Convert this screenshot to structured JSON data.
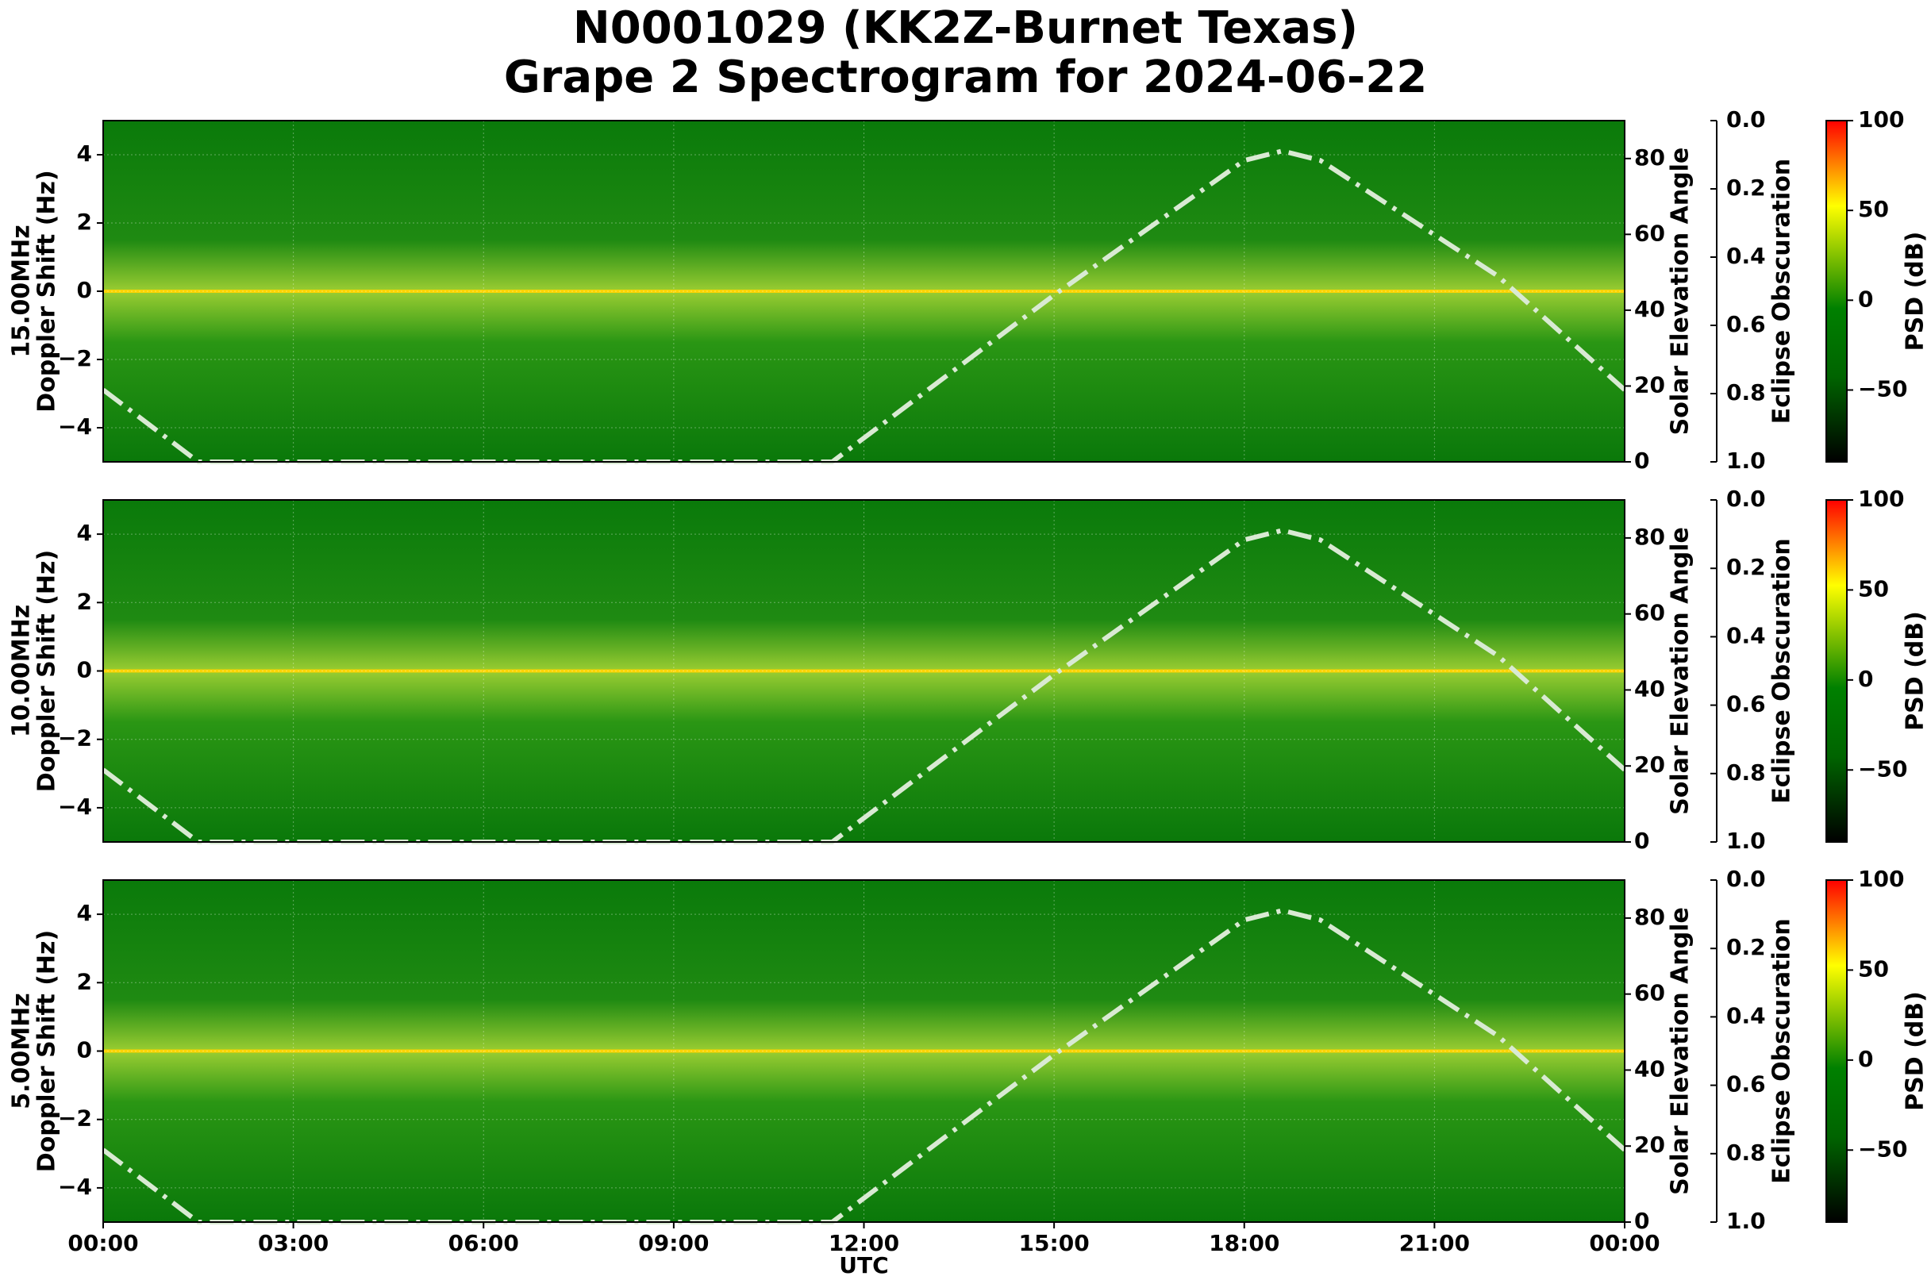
{
  "title_line1": "N0001029 (KK2Z-Burnet Texas)",
  "title_line2": "Grape 2 Spectrogram for 2024-06-22",
  "chart_data": {
    "type": "heatmap",
    "x_label": "UTC",
    "x_ticks": [
      "00:00",
      "03:00",
      "06:00",
      "09:00",
      "12:00",
      "15:00",
      "18:00",
      "21:00",
      "00:00"
    ],
    "x_range_hours": [
      0,
      24
    ],
    "y_label": "Doppler Shift (Hz)",
    "y_range": [
      -5,
      5
    ],
    "y_ticks": [
      4,
      2,
      0,
      -2,
      -4
    ],
    "right_axis_1": {
      "label": "Solar Elevation Angle",
      "range": [
        0,
        90
      ],
      "ticks": [
        80,
        60,
        40,
        20,
        0
      ]
    },
    "right_axis_2": {
      "label": "Eclipse Obscuration",
      "range": [
        0.0,
        1.0
      ],
      "ticks": [
        "0.0",
        "0.2",
        "0.4",
        "0.6",
        "0.8",
        "1.0"
      ]
    },
    "colorbar": {
      "label": "PSD (dB)",
      "range": [
        -90,
        100
      ],
      "ticks": [
        100,
        50,
        0,
        -50
      ],
      "colors": [
        "#000000",
        "#006400",
        "#008000",
        "#ffff00",
        "#ff0000"
      ]
    },
    "grid": true,
    "panels": [
      {
        "label": "15.00MHz",
        "carrier_doppler_hz": 0
      },
      {
        "label": "10.00MHz",
        "carrier_doppler_hz": 0
      },
      {
        "label": "5.00MHz",
        "carrier_doppler_hz": 0
      }
    ],
    "solar_elevation_series": {
      "style": "dash-dot",
      "color": "#d9ead3",
      "points": [
        [
          0,
          19
        ],
        [
          1.5,
          0
        ],
        [
          11.5,
          0
        ],
        [
          15,
          44
        ],
        [
          18,
          79.5
        ],
        [
          18.6,
          82
        ],
        [
          19.2,
          79.5
        ],
        [
          22,
          49
        ],
        [
          24,
          19
        ]
      ]
    }
  }
}
